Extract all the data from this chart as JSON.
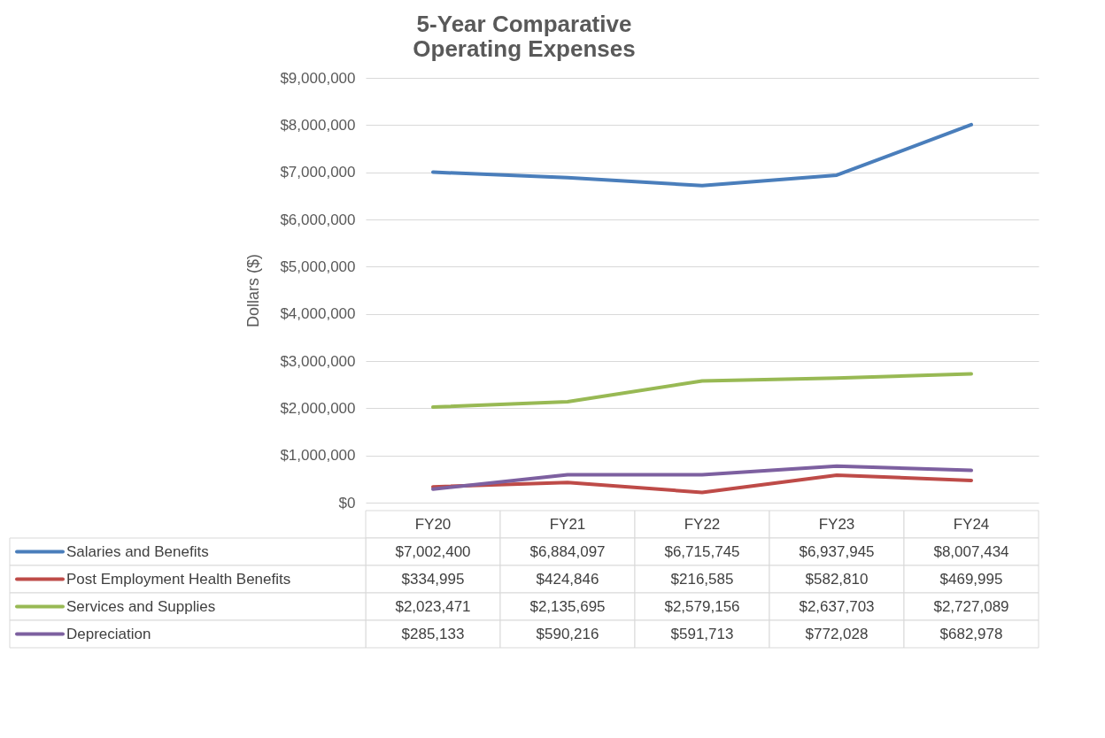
{
  "chart_data": {
    "type": "line",
    "title": "5-Year Comparative\nOperating Expenses",
    "ylabel": "Dollars ($)",
    "categories": [
      "FY20",
      "FY21",
      "FY22",
      "FY23",
      "FY24"
    ],
    "series": [
      {
        "name": "Salaries and Benefits",
        "color": "#4a7ebb",
        "values": [
          7002400,
          6884097,
          6715745,
          6937945,
          8007434
        ],
        "value_labels": [
          "$7,002,400",
          "$6,884,097",
          "$6,715,745",
          "$6,937,945",
          "$8,007,434"
        ]
      },
      {
        "name": "Post Employment Health Benefits",
        "color": "#be4b48",
        "values": [
          334995,
          424846,
          216585,
          582810,
          469995
        ],
        "value_labels": [
          "$334,995",
          "$424,846",
          "$216,585",
          "$582,810",
          "$469,995"
        ]
      },
      {
        "name": "Services and Supplies",
        "color": "#98b954",
        "values": [
          2023471,
          2135695,
          2579156,
          2637703,
          2727089
        ],
        "value_labels": [
          "$2,023,471",
          "$2,135,695",
          "$2,579,156",
          "$2,637,703",
          "$2,727,089"
        ]
      },
      {
        "name": "Depreciation",
        "color": "#7d60a0",
        "values": [
          285133,
          590216,
          591713,
          772028,
          682978
        ],
        "value_labels": [
          "$285,133",
          "$590,216",
          "$591,713",
          "$772,028",
          "$682,978"
        ]
      }
    ],
    "ylim": [
      0,
      9000000
    ],
    "yticks": [
      {
        "value": 0,
        "label": "$0"
      },
      {
        "value": 1000000,
        "label": "$1,000,000"
      },
      {
        "value": 2000000,
        "label": "$2,000,000"
      },
      {
        "value": 3000000,
        "label": "$3,000,000"
      },
      {
        "value": 4000000,
        "label": "$4,000,000"
      },
      {
        "value": 5000000,
        "label": "$5,000,000"
      },
      {
        "value": 6000000,
        "label": "$6,000,000"
      },
      {
        "value": 7000000,
        "label": "$7,000,000"
      },
      {
        "value": 8000000,
        "label": "$8,000,000"
      },
      {
        "value": 9000000,
        "label": "$9,000,000"
      }
    ],
    "grid": "y",
    "legend": "bottom",
    "marker": "none",
    "line_style": "solid"
  }
}
